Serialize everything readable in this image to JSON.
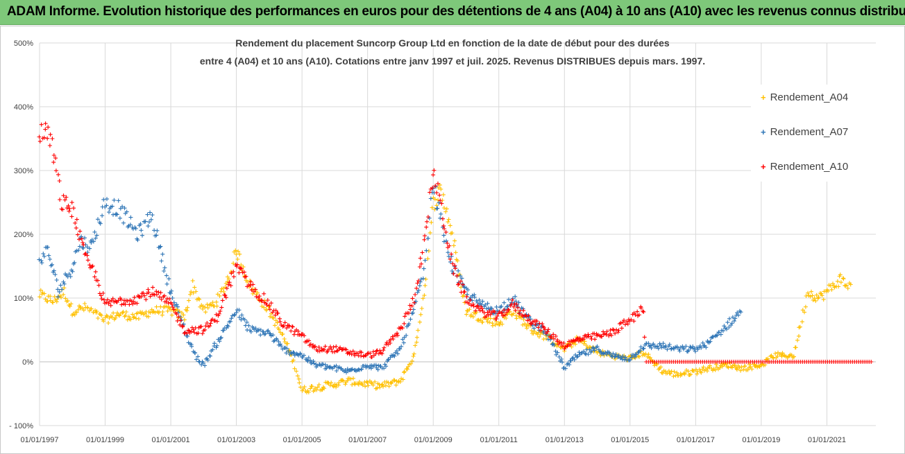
{
  "header": {
    "title": "ADAM Informe. Evolution historique des performances en euros pour des détentions de 4 ans (A04) à 10 ans (A10) avec les revenus connus distribués"
  },
  "chart_data": {
    "type": "scatter",
    "title_line1": "Rendement du placement Suncorp Group Ltd  en fonction de la date de début pour des durées",
    "title_line2": "entre 4 (A04) et 10 ans (A10). Cotations entre janv 1997 et juil. 2025. Revenus DISTRIBUES depuis mars. 1997.",
    "xlabel": "",
    "ylabel": "",
    "x_range": [
      "1997-01-01",
      "2022-06-30"
    ],
    "ylim": [
      -100,
      500
    ],
    "y_ticks": [
      -100,
      0,
      100,
      200,
      300,
      400,
      500
    ],
    "y_tick_labels": [
      "- 100%",
      "0%",
      "100%",
      "200%",
      "300%",
      "400%",
      "500%"
    ],
    "x_ticks": [
      "1997-01-01",
      "1999-01-01",
      "2001-01-01",
      "2003-01-01",
      "2005-01-01",
      "2007-01-01",
      "2009-01-01",
      "2011-01-01",
      "2013-01-01",
      "2015-01-01",
      "2017-01-01",
      "2019-01-01",
      "2021-01-01"
    ],
    "x_tick_labels": [
      "01/01/1997",
      "01/01/1999",
      "01/01/2001",
      "01/01/2003",
      "01/01/2005",
      "01/01/2007",
      "01/01/2009",
      "01/01/2011",
      "01/01/2013",
      "01/01/2015",
      "01/01/2017",
      "01/01/2019",
      "01/01/2021"
    ],
    "grid": true,
    "legend_position": "right",
    "marker": "+",
    "series": [
      {
        "name": "Rendement_A04",
        "color": "#ffc000",
        "points": [
          [
            "1997-01-01",
            105
          ],
          [
            "1997-06-01",
            95
          ],
          [
            "1997-10-01",
            110
          ],
          [
            "1998-01-01",
            80
          ],
          [
            "1998-06-01",
            85
          ],
          [
            "1999-01-01",
            65
          ],
          [
            "1999-06-01",
            75
          ],
          [
            "2000-01-01",
            70
          ],
          [
            "2000-06-01",
            80
          ],
          [
            "2001-01-01",
            80
          ],
          [
            "2001-06-01",
            70
          ],
          [
            "2001-09-01",
            120
          ],
          [
            "2002-01-01",
            80
          ],
          [
            "2002-06-01",
            95
          ],
          [
            "2002-10-01",
            130
          ],
          [
            "2003-01-01",
            175
          ],
          [
            "2003-06-01",
            120
          ],
          [
            "2004-01-01",
            80
          ],
          [
            "2004-06-01",
            40
          ],
          [
            "2004-10-01",
            0
          ],
          [
            "2005-01-01",
            -45
          ],
          [
            "2005-06-01",
            -40
          ],
          [
            "2006-01-01",
            -35
          ],
          [
            "2006-06-01",
            -30
          ],
          [
            "2007-01-01",
            -35
          ],
          [
            "2007-06-01",
            -38
          ],
          [
            "2008-01-01",
            -30
          ],
          [
            "2008-06-01",
            10
          ],
          [
            "2008-10-01",
            120
          ],
          [
            "2009-01-01",
            250
          ],
          [
            "2009-04-01",
            270
          ],
          [
            "2009-08-01",
            200
          ],
          [
            "2010-01-01",
            80
          ],
          [
            "2010-06-01",
            70
          ],
          [
            "2011-01-01",
            60
          ],
          [
            "2011-06-01",
            80
          ],
          [
            "2012-01-01",
            50
          ],
          [
            "2012-06-01",
            40
          ],
          [
            "2013-01-01",
            20
          ],
          [
            "2013-06-01",
            35
          ],
          [
            "2014-01-01",
            15
          ],
          [
            "2014-06-01",
            10
          ],
          [
            "2015-01-01",
            5
          ],
          [
            "2015-06-01",
            15
          ],
          [
            "2016-01-01",
            -15
          ],
          [
            "2016-06-01",
            -20
          ],
          [
            "2017-01-01",
            -15
          ],
          [
            "2017-06-01",
            -10
          ],
          [
            "2018-01-01",
            -5
          ],
          [
            "2018-06-01",
            -10
          ],
          [
            "2019-01-01",
            -5
          ],
          [
            "2019-06-01",
            10
          ],
          [
            "2020-01-01",
            10
          ],
          [
            "2020-03-01",
            50
          ],
          [
            "2020-06-01",
            110
          ],
          [
            "2020-10-01",
            100
          ],
          [
            "2021-01-01",
            110
          ],
          [
            "2021-06-01",
            130
          ],
          [
            "2021-10-01",
            115
          ]
        ]
      },
      {
        "name": "Rendement_A07",
        "color": "#2e75b6",
        "points": [
          [
            "1997-01-01",
            160
          ],
          [
            "1997-04-01",
            175
          ],
          [
            "1997-08-01",
            110
          ],
          [
            "1998-01-01",
            150
          ],
          [
            "1998-04-01",
            190
          ],
          [
            "1998-08-01",
            180
          ],
          [
            "1999-01-01",
            250
          ],
          [
            "1999-06-01",
            240
          ],
          [
            "2000-01-01",
            200
          ],
          [
            "2000-06-01",
            230
          ],
          [
            "2001-01-01",
            110
          ],
          [
            "2001-06-01",
            50
          ],
          [
            "2001-10-01",
            10
          ],
          [
            "2002-01-01",
            -5
          ],
          [
            "2002-06-01",
            30
          ],
          [
            "2003-01-01",
            80
          ],
          [
            "2003-06-01",
            50
          ],
          [
            "2004-01-01",
            45
          ],
          [
            "2004-06-01",
            20
          ],
          [
            "2005-01-01",
            10
          ],
          [
            "2005-06-01",
            -5
          ],
          [
            "2006-01-01",
            -10
          ],
          [
            "2006-06-01",
            -15
          ],
          [
            "2007-01-01",
            -5
          ],
          [
            "2007-06-01",
            -10
          ],
          [
            "2008-01-01",
            20
          ],
          [
            "2008-06-01",
            80
          ],
          [
            "2008-10-01",
            150
          ],
          [
            "2009-01-01",
            280
          ],
          [
            "2009-04-01",
            220
          ],
          [
            "2009-08-01",
            150
          ],
          [
            "2010-01-01",
            110
          ],
          [
            "2010-06-01",
            90
          ],
          [
            "2011-01-01",
            80
          ],
          [
            "2011-06-01",
            100
          ],
          [
            "2012-01-01",
            60
          ],
          [
            "2012-06-01",
            50
          ],
          [
            "2013-01-01",
            -10
          ],
          [
            "2013-06-01",
            10
          ],
          [
            "2014-01-01",
            20
          ],
          [
            "2014-06-01",
            10
          ],
          [
            "2015-01-01",
            5
          ],
          [
            "2015-06-01",
            25
          ],
          [
            "2016-01-01",
            25
          ],
          [
            "2016-06-01",
            20
          ],
          [
            "2017-01-01",
            20
          ],
          [
            "2017-06-01",
            30
          ],
          [
            "2018-01-01",
            60
          ],
          [
            "2018-06-01",
            80
          ]
        ]
      },
      {
        "name": "Rendement_A10",
        "color": "#ff0000",
        "points": [
          [
            "1997-01-01",
            350
          ],
          [
            "1997-03-01",
            370
          ],
          [
            "1997-06-01",
            330
          ],
          [
            "1997-09-01",
            250
          ],
          [
            "1998-01-01",
            240
          ],
          [
            "1998-06-01",
            160
          ],
          [
            "1998-09-01",
            140
          ],
          [
            "1999-01-01",
            90
          ],
          [
            "1999-06-01",
            95
          ],
          [
            "2000-01-01",
            100
          ],
          [
            "2000-06-01",
            110
          ],
          [
            "2001-01-01",
            90
          ],
          [
            "2001-06-01",
            50
          ],
          [
            "2002-01-01",
            50
          ],
          [
            "2002-06-01",
            70
          ],
          [
            "2003-01-01",
            150
          ],
          [
            "2003-06-01",
            120
          ],
          [
            "2004-01-01",
            90
          ],
          [
            "2004-06-01",
            60
          ],
          [
            "2005-01-01",
            40
          ],
          [
            "2005-06-01",
            20
          ],
          [
            "2006-01-01",
            20
          ],
          [
            "2006-06-01",
            15
          ],
          [
            "2007-01-01",
            10
          ],
          [
            "2007-06-01",
            15
          ],
          [
            "2008-01-01",
            50
          ],
          [
            "2008-06-01",
            100
          ],
          [
            "2008-10-01",
            190
          ],
          [
            "2009-01-01",
            300
          ],
          [
            "2009-04-01",
            240
          ],
          [
            "2009-08-01",
            150
          ],
          [
            "2010-01-01",
            100
          ],
          [
            "2010-06-01",
            80
          ],
          [
            "2011-01-01",
            70
          ],
          [
            "2011-06-01",
            90
          ],
          [
            "2012-01-01",
            65
          ],
          [
            "2012-06-01",
            50
          ],
          [
            "2013-01-01",
            25
          ],
          [
            "2013-06-01",
            35
          ],
          [
            "2014-01-01",
            40
          ],
          [
            "2014-06-01",
            45
          ],
          [
            "2015-01-01",
            65
          ],
          [
            "2015-06-01",
            85
          ],
          [
            "2015-07-01",
            0
          ],
          [
            "2022-06-01",
            0
          ]
        ]
      }
    ]
  }
}
